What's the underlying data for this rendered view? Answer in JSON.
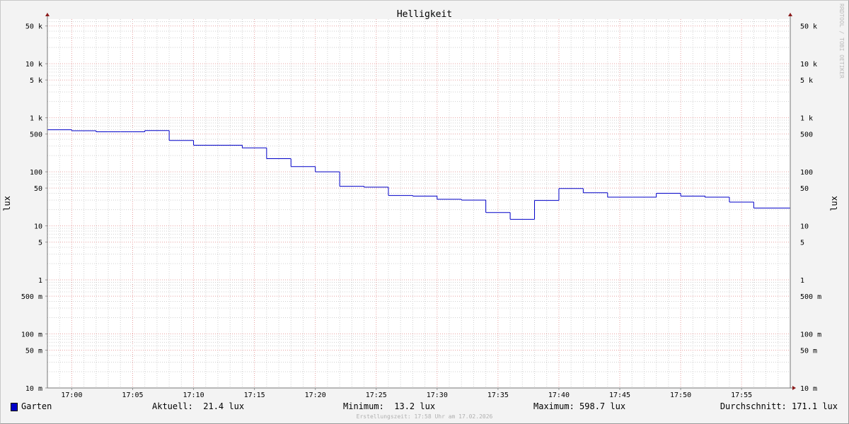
{
  "chart_data": {
    "type": "line",
    "step": true,
    "title": "Helligkeit",
    "ylabel": "lux",
    "y_scale": "log",
    "ylim": [
      0.01,
      67000
    ],
    "xlim": [
      "16:58",
      "17:59"
    ],
    "grid": true,
    "y_ticks": [
      {
        "value": 0.01,
        "label": "10 m"
      },
      {
        "value": 0.05,
        "label": "50 m"
      },
      {
        "value": 0.1,
        "label": "100 m"
      },
      {
        "value": 0.5,
        "label": "500 m"
      },
      {
        "value": 1,
        "label": "1"
      },
      {
        "value": 5,
        "label": "5"
      },
      {
        "value": 10,
        "label": "10"
      },
      {
        "value": 50,
        "label": "50"
      },
      {
        "value": 100,
        "label": "100"
      },
      {
        "value": 500,
        "label": "500"
      },
      {
        "value": 1000,
        "label": "1 k"
      },
      {
        "value": 5000,
        "label": "5 k"
      },
      {
        "value": 10000,
        "label": "10 k"
      },
      {
        "value": 50000,
        "label": "50 k"
      }
    ],
    "x_ticks": [
      "17:00",
      "17:05",
      "17:10",
      "17:15",
      "17:20",
      "17:25",
      "17:30",
      "17:35",
      "17:40",
      "17:45",
      "17:50",
      "17:55"
    ],
    "series": [
      {
        "name": "Garten",
        "color": "#0000c8",
        "x": [
          "16:58",
          "17:00",
          "17:02",
          "17:04",
          "17:06",
          "17:08",
          "17:10",
          "17:12",
          "17:14",
          "17:16",
          "17:18",
          "17:20",
          "17:22",
          "17:24",
          "17:26",
          "17:28",
          "17:30",
          "17:32",
          "17:34",
          "17:36",
          "17:38",
          "17:40",
          "17:42",
          "17:44",
          "17:46",
          "17:48",
          "17:50",
          "17:52",
          "17:54",
          "17:56"
        ],
        "values": [
          598.7,
          575,
          550,
          550,
          580,
          380,
          310,
          310,
          277,
          175,
          125,
          100,
          54,
          52,
          36.5,
          35.5,
          31,
          30,
          17.6,
          13.2,
          29.5,
          49,
          41,
          34,
          34,
          40,
          35.5,
          34,
          27.5,
          21.4
        ]
      }
    ],
    "legend": {
      "name": "Garten",
      "swatch_color": "#0000c8",
      "current": "Aktuell:  21.4 lux",
      "minimum": "Minimum:  13.2 lux",
      "maximum": "Maximum: 598.7 lux",
      "average": "Durchschnitt: 171.1 lux"
    },
    "footer": "Erstellungszeit: 17:58 Uhr am 17.02.2026",
    "watermark": "RRDTOOL / TOBI OETIKER"
  }
}
